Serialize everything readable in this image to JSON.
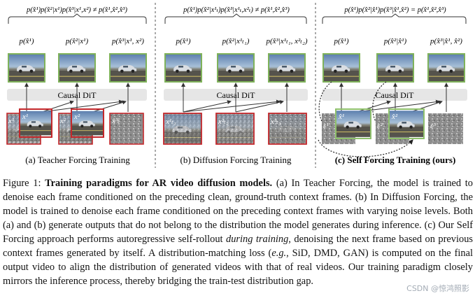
{
  "panels": [
    {
      "id": "teacher",
      "top_formula": "p(x̂¹)p(x̂²|x¹)p(x̂³|x¹,x²) ≠ p(x̂¹,x̂²,x̂³)",
      "outputs": [
        "p(x̂¹)",
        "p(x̂²|x¹)",
        "p(x̂³|x¹, x²)"
      ],
      "module": "Causal DiT",
      "inputs": [
        "x¹",
        "x²",
        "x³ₜ"
      ],
      "input_overlays": [
        "x¹",
        "x²"
      ],
      "caption": "(a) Teacher Forcing Training"
    },
    {
      "id": "diffusion",
      "top_formula": "p(x̂¹)p(x̂²|x¹ₜ)p(x̂³|x¹ₜ,x²ₜ) ≠ p(x̂¹,x̂²,x̂³)",
      "outputs": [
        "p(x̂¹)",
        "p(x̂²|x¹ₜ₁)",
        "p(x̂³|x¹ₜ₁, x²ₜ₂)"
      ],
      "module": "Causal DiT",
      "inputs": [
        "x¹ₜ₁",
        "x²ₜ₂",
        "x³ₜ₃"
      ],
      "caption": "(b) Diffusion Forcing Training"
    },
    {
      "id": "self",
      "top_formula": "p(x̂¹)p(x̂²|x̂¹)p(x̂³|x̂¹,x̂²) = p(x̂¹,x̂²,x̂³)",
      "outputs": [
        "p(x̂¹)",
        "p(x̂²|x̂¹)",
        "p(x̂³|x̂¹, x̂²)"
      ],
      "module": "Causal DiT",
      "inputs": [
        "ε¹",
        "ε²",
        "ε³"
      ],
      "input_overlays": [
        "x̂¹",
        "x̂²"
      ],
      "caption": "(c) Self Forcing Training (ours)"
    }
  ],
  "caption": {
    "label": "Figure 1:",
    "title": "Training paradigms for AR video diffusion models.",
    "text_a": "(a) In Teacher Forcing, the model is trained to denoise each frame conditioned on the preceding clean, ground-truth context frames. (b) In Diffusion Forcing, the model is trained to denoise each frame conditioned on the preceding context frames with varying noise levels. Both (a) and (b) generate outputs that do not belong to the distribution the model generates during inference. (c) Our Self Forcing approach performs autoregressive self-rollout",
    "italic": "during training",
    "text_b": ", denoising the next frame based on previous context frames generated by itself. A distribution-matching loss (",
    "eg": "e.g.",
    "text_c": ", SiD, DMD, GAN) is computed on the final output video to align the distribution of generated videos with that of real videos. Our training paradigm closely mirrors the inference process, thereby bridging the train-test distribution gap."
  },
  "watermark": "CSDN @惊鸿照影",
  "colors": {
    "red": "#c3272b",
    "green": "#2e9a3a",
    "frame_green": "#8ec06c",
    "box_gray": "#e8e8e8"
  }
}
